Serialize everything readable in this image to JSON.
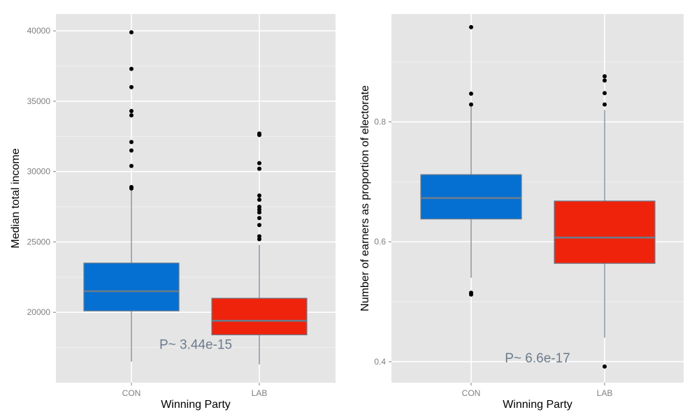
{
  "colors": {
    "panel_bg": "#e5e5e5",
    "grid_major": "#ffffff",
    "grid_minor": "#f0f0f0",
    "CON": "#0570d1",
    "LAB": "#ef230c",
    "box_border": "#6b7b8c",
    "median": "#6b7b8c",
    "whisker": "#6b7b8c",
    "outlier": "#000000",
    "annotation": "#6b7b8c"
  },
  "chart_data": [
    {
      "type": "boxplot",
      "xlabel": "Winning Party",
      "ylabel": "Median total income",
      "categories": [
        "CON",
        "LAB"
      ],
      "ylim": [
        15000,
        41200
      ],
      "yticks": [
        20000,
        25000,
        30000,
        35000,
        40000
      ],
      "y_tick_labels": [
        "20000",
        "25000",
        "30000",
        "35000",
        "40000"
      ],
      "grid": true,
      "boxes": [
        {
          "category": "CON",
          "whisker_low": 16500,
          "q1": 20100,
          "median": 21500,
          "q3": 23500,
          "whisker_high": 28700,
          "outliers": [
            28800,
            28900,
            30400,
            31500,
            32100,
            34000,
            34300,
            36000,
            37300,
            39900
          ]
        },
        {
          "category": "LAB",
          "whisker_low": 16300,
          "q1": 18400,
          "median": 19400,
          "q3": 21000,
          "whisker_high": 24800,
          "outliers": [
            25200,
            25400,
            26200,
            26700,
            27100,
            27300,
            27500,
            28000,
            28300,
            30200,
            30600,
            32600,
            32700
          ]
        }
      ],
      "annotation": {
        "text": "P~ 3.44e-15",
        "x_between": "CON-LAB",
        "y": 17400
      }
    },
    {
      "type": "boxplot",
      "xlabel": "Winning Party",
      "ylabel": "Number of earners as proportion of electorate",
      "categories": [
        "CON",
        "LAB"
      ],
      "ylim": [
        0.365,
        0.98
      ],
      "yticks": [
        0.4,
        0.6,
        0.8
      ],
      "y_tick_labels": [
        "0.4",
        "0.6",
        "0.8"
      ],
      "grid": true,
      "boxes": [
        {
          "category": "CON",
          "whisker_low": 0.54,
          "q1": 0.638,
          "median": 0.673,
          "q3": 0.712,
          "whisker_high": 0.83,
          "outliers": [
            0.512,
            0.515,
            0.829,
            0.847,
            0.958
          ]
        },
        {
          "category": "LAB",
          "whisker_low": 0.44,
          "q1": 0.564,
          "median": 0.607,
          "q3": 0.668,
          "whisker_high": 0.82,
          "outliers": [
            0.392,
            0.829,
            0.848,
            0.869,
            0.876
          ]
        }
      ],
      "annotation": {
        "text": "P~ 6.6e-17",
        "x_between": "CON-LAB",
        "y": 0.399
      }
    }
  ]
}
